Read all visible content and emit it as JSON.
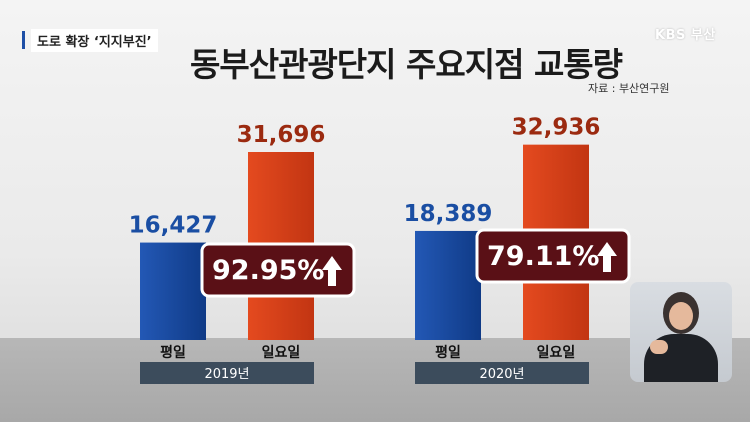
{
  "header": {
    "topic_label": "도로 확장 ‘지지부진’",
    "broadcaster_logo": "KBS 부산",
    "source": "자료 : 부산연구원"
  },
  "colors": {
    "weekday": "#1a4ea3",
    "sunday": "#d63d18",
    "weekday_label": "#1a4ea3",
    "sunday_label": "#9b2a10",
    "badge_bg": "#5a1016",
    "year_band": "#3c4c5c"
  },
  "chart_data": {
    "type": "bar",
    "title": "동부산관광단지 주요지점 교통량",
    "categories": [
      "평일",
      "일요일"
    ],
    "groups": [
      {
        "year": "2019년",
        "values": [
          16427,
          31696
        ],
        "value_labels": [
          "16,427",
          "31,696"
        ],
        "change_label": "92.95%"
      },
      {
        "year": "2020년",
        "values": [
          18389,
          32936
        ],
        "value_labels": [
          "18,389",
          "32,936"
        ],
        "change_label": "79.11%"
      }
    ],
    "grid": false,
    "legend": "none"
  }
}
